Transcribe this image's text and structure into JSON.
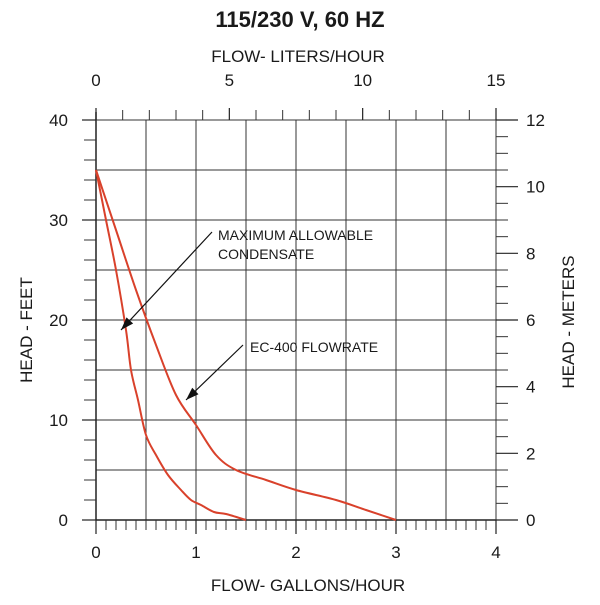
{
  "title": "115/230 V, 60 HZ",
  "chart_data": {
    "type": "line",
    "title": "115/230 V, 60 HZ",
    "xlabel": "FLOW- GALLONS/HOUR",
    "ylabel": "HEAD - FEET",
    "x2label": "FLOW- LITERS/HOUR",
    "y2label": "HEAD - METERS",
    "xlim": [
      0,
      4
    ],
    "ylim": [
      0,
      40
    ],
    "x2lim": [
      0,
      15
    ],
    "y2lim": [
      0,
      12
    ],
    "x_ticks": [
      "0",
      "1",
      "2",
      "3",
      "4"
    ],
    "y_ticks": [
      "0",
      "10",
      "20",
      "30",
      "40"
    ],
    "x2_ticks": [
      "0",
      "5",
      "10",
      "15"
    ],
    "y2_ticks": [
      "0",
      "2",
      "4",
      "6",
      "8",
      "10",
      "12"
    ],
    "grid": true,
    "series": [
      {
        "name": "MAXIMUM ALLOWABLE CONDENSATE",
        "color": "#d9412b",
        "x": [
          0,
          0.1,
          0.2,
          0.3,
          0.35,
          0.42,
          0.5,
          0.6,
          0.72,
          0.85,
          0.95,
          1.05,
          1.18,
          1.3,
          1.5
        ],
        "y": [
          35,
          30,
          25,
          19,
          15,
          12,
          8.5,
          6.5,
          4.5,
          3.0,
          2.0,
          1.5,
          0.8,
          0.6,
          0
        ]
      },
      {
        "name": "EC-400 FLOWRATE",
        "color": "#d9412b",
        "x": [
          0,
          0.2,
          0.4,
          0.6,
          0.8,
          1.0,
          1.2,
          1.4,
          1.7,
          2.0,
          2.4,
          2.7,
          3.0
        ],
        "y": [
          35,
          29,
          23,
          17.5,
          12.5,
          9.5,
          6.5,
          5.0,
          4.0,
          3.0,
          2.0,
          1.0,
          0
        ]
      }
    ],
    "annotations": [
      {
        "text_lines": [
          "MAXIMUM ALLOWABLE",
          "CONDENSATE"
        ],
        "points_to": [
          0.25,
          19
        ]
      },
      {
        "text_lines": [
          "EC-400 FLOWRATE"
        ],
        "points_to": [
          0.9,
          12
        ]
      }
    ]
  }
}
